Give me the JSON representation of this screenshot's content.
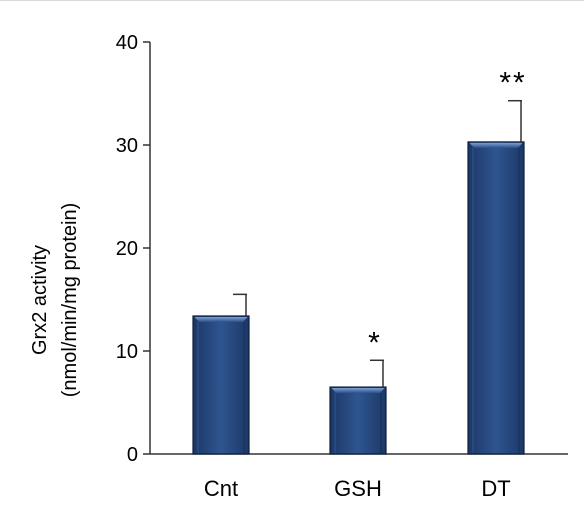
{
  "chart_data": {
    "type": "bar",
    "categories": [
      "Cnt",
      "GSH",
      "DT"
    ],
    "values": [
      13.4,
      6.5,
      30.3
    ],
    "error": [
      2.1,
      2.6,
      4.0
    ],
    "significance": [
      "",
      "*",
      "**"
    ],
    "ylabel": "Grx2 activity",
    "ylabel_units": "(nmol/min/mg protein)",
    "ylim": [
      0,
      40
    ],
    "yticks": [
      0,
      10,
      20,
      30,
      40
    ],
    "grid": false,
    "legend": "none",
    "colors": {
      "bar": "#2c4f86",
      "bar_top": "#5b86c4",
      "bar_edge": "#0e1f3a",
      "axis": "#333333",
      "text": "#000000"
    }
  }
}
